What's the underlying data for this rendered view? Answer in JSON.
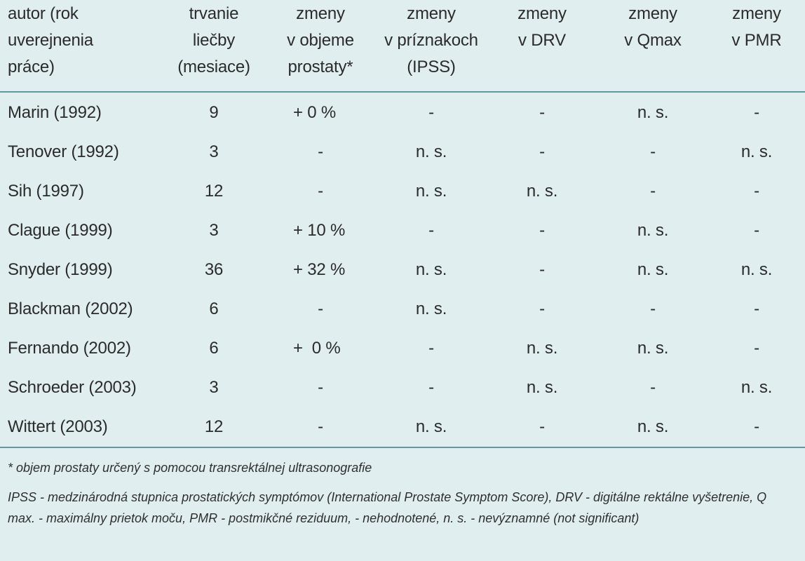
{
  "table": {
    "headers": [
      "autor (rok\nuverejnenia\npráce)",
      "trvanie\nliečby\n(mesiace)",
      "zmeny\nv objeme\nprostaty*",
      "zmeny\nv príznakoch\n(IPSS)",
      "zmeny\nv DRV",
      "zmeny\nv Qmax",
      "zmeny\nv PMR"
    ],
    "rows": [
      [
        "Marin (1992)",
        "9",
        "+ 0 %",
        "-",
        "-",
        "n. s.",
        "-"
      ],
      [
        "Tenover (1992)",
        "3",
        "-",
        "n. s.",
        "-",
        "-",
        "n. s."
      ],
      [
        "Sih (1997)",
        "12",
        "-",
        "n. s.",
        "n. s.",
        "-",
        "-"
      ],
      [
        "Clague (1999)",
        "3",
        "+ 10 %",
        "-",
        "-",
        "n. s.",
        "-"
      ],
      [
        "Snyder (1999)",
        "36",
        "+ 32 %",
        "n. s.",
        "-",
        "n. s.",
        "n. s."
      ],
      [
        "Blackman (2002)",
        "6",
        "-",
        "n. s.",
        "-",
        "-",
        "-"
      ],
      [
        "Fernando (2002)",
        "6",
        "+  0 %",
        "-",
        "n. s.",
        "n. s.",
        "-"
      ],
      [
        "Schroeder (2003)",
        "3",
        "-",
        "-",
        "n. s.",
        "-",
        "n. s."
      ],
      [
        "Wittert (2003)",
        "12",
        "-",
        "n. s.",
        "-",
        "n. s.",
        "-"
      ]
    ]
  },
  "notes": {
    "footnote": "* objem prostaty určený s pomocou transrektálnej ultrasonografie",
    "abbreviations": "IPSS - medzinárodná stupnica prostatických symptómov (International Prostate Symptom Score), DRV - digitálne rektálne vyšetrenie, Q max. - maximálny prietok moču, PMR - postmikčné reziduum, - nehodnotené, n. s. - nevýznamné (not significant)"
  }
}
